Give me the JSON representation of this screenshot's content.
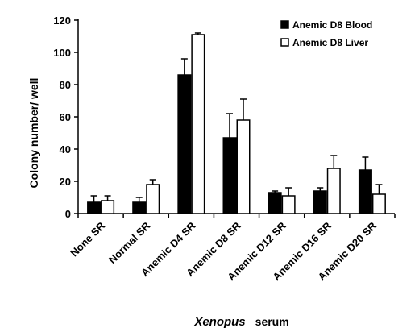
{
  "chart_data": {
    "type": "bar",
    "title": "",
    "ylabel": "Colony number/ well",
    "xlabel": {
      "italic_part": "Xenopus",
      "rest": "serum"
    },
    "ylim": [
      0,
      120
    ],
    "yticks": [
      0,
      20,
      40,
      60,
      80,
      100,
      120
    ],
    "categories": [
      "None SR",
      "Normal SR",
      "Anemic D4 SR",
      "Anemic D8 SR",
      "Anemic D12 SR",
      "Anemic D16 SR",
      "Anemic D20 SR"
    ],
    "legend_position": "top-right",
    "series": [
      {
        "name": "Anemic D8 Blood",
        "fill": "#000000",
        "values": [
          7,
          7,
          86,
          47,
          13,
          14,
          27
        ],
        "errors": [
          4,
          3,
          10,
          15,
          1,
          2,
          8
        ]
      },
      {
        "name": "Anemic D8 Liver",
        "fill": "#ffffff",
        "values": [
          8,
          18,
          111,
          58,
          11,
          28,
          12
        ],
        "errors": [
          3,
          3,
          1,
          13,
          5,
          8,
          6
        ]
      }
    ],
    "colors": {
      "bar_edge": "#000000",
      "axis": "#000000"
    }
  }
}
